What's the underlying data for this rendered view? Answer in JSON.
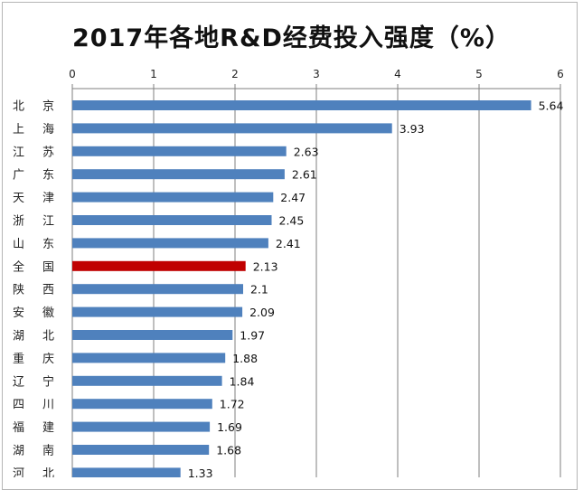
{
  "chart_data": {
    "type": "bar",
    "orientation": "horizontal",
    "title": "2017年各地R&D经费投入强度（%）",
    "xlim": [
      0,
      6
    ],
    "x_ticks": [
      "0",
      "1",
      "2",
      "3",
      "4",
      "5",
      "6"
    ],
    "x_axis_position": "top",
    "grid": true,
    "categories": [
      [
        "北",
        "京"
      ],
      [
        "上",
        "海"
      ],
      [
        "江",
        "苏"
      ],
      [
        "广",
        "东"
      ],
      [
        "天",
        "津"
      ],
      [
        "浙",
        "江"
      ],
      [
        "山",
        "东"
      ],
      [
        "全",
        "国"
      ],
      [
        "陕",
        "西"
      ],
      [
        "安",
        "徽"
      ],
      [
        "湖",
        "北"
      ],
      [
        "重",
        "庆"
      ],
      [
        "辽",
        "宁"
      ],
      [
        "四",
        "川"
      ],
      [
        "福",
        "建"
      ],
      [
        "湖",
        "南"
      ],
      [
        "河",
        "北"
      ]
    ],
    "values": [
      5.64,
      3.93,
      2.63,
      2.61,
      2.47,
      2.45,
      2.41,
      2.13,
      2.1,
      2.09,
      1.97,
      1.88,
      1.84,
      1.72,
      1.69,
      1.68,
      1.33
    ],
    "value_labels": [
      "5.64",
      "3.93",
      "2.63",
      "2.61",
      "2.47",
      "2.45",
      "2.41",
      "2.13",
      "2.1",
      "2.09",
      "1.97",
      "1.88",
      "1.84",
      "1.72",
      "1.69",
      "1.68",
      "1.33"
    ],
    "highlight_index": 7,
    "colors": {
      "bar": "#4f81bd",
      "highlight": "#c00000",
      "grid": "#7f7f7f"
    }
  }
}
